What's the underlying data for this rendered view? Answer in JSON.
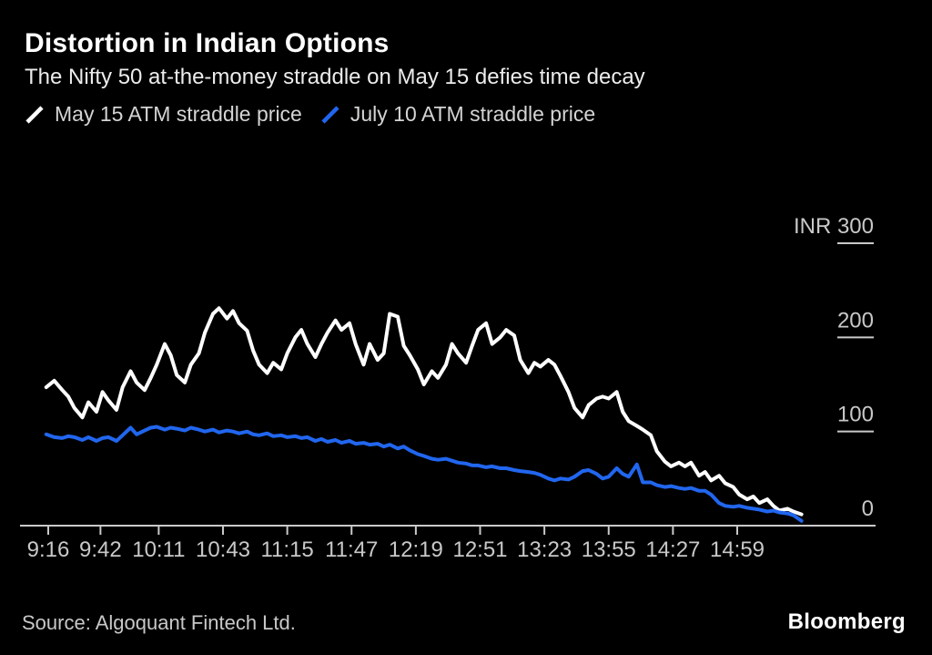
{
  "header": {
    "title": "Distortion in Indian Options",
    "subtitle": "The Nifty 50 at-the-money straddle on May 15 defies time decay"
  },
  "legend": [
    {
      "label": "May 15 ATM straddle price",
      "color": "#ffffff"
    },
    {
      "label": "July 10 ATM straddle price",
      "color": "#2166ee"
    }
  ],
  "footer": {
    "source": "Source: Algoquant Fintech Ltd.",
    "brand": "Bloomberg"
  },
  "colors": {
    "background": "#000000",
    "axis": "#c9c9c9",
    "tick_text": "#c8c8c8"
  },
  "chart_data": {
    "type": "line",
    "title": "Distortion in Indian Options",
    "subtitle": "The Nifty 50 at-the-money straddle on May 15 defies time decay",
    "unit": "INR",
    "grid": false,
    "legend_position": "top-left",
    "x_axis": {
      "kind": "time",
      "base_time": "9:15",
      "tick_minutes": [
        1,
        27,
        56,
        88,
        120,
        152,
        184,
        216,
        248,
        280,
        312,
        344
      ],
      "tick_labels": [
        "9:16",
        "9:42",
        "10:11",
        "10:43",
        "11:15",
        "11:47",
        "12:19",
        "12:51",
        "13:23",
        "13:55",
        "14:27",
        "14:59"
      ]
    },
    "y_axis": {
      "side": "right",
      "ylim": [
        0,
        300
      ],
      "ticks": [
        0,
        100,
        200,
        300
      ],
      "tick_labels": [
        "0",
        "100",
        "200",
        "INR 300"
      ]
    },
    "t_minutes": [
      0,
      4,
      8,
      11,
      14,
      18,
      21,
      25,
      28,
      31,
      35,
      38,
      42,
      45,
      49,
      52,
      55,
      59,
      62,
      65,
      69,
      72,
      76,
      79,
      83,
      86,
      90,
      93,
      96,
      100,
      103,
      106,
      110,
      113,
      117,
      120,
      124,
      127,
      130,
      134,
      137,
      140,
      144,
      147,
      151,
      154,
      158,
      161,
      165,
      168,
      171,
      175,
      178,
      181,
      185,
      188,
      192,
      195,
      199,
      202,
      205,
      209,
      212,
      215,
      219,
      222,
      226,
      229,
      233,
      236,
      240,
      243,
      246,
      250,
      253,
      256,
      260,
      263,
      267,
      270,
      274,
      277,
      280,
      284,
      287,
      290,
      294,
      297,
      301,
      304,
      308,
      311,
      315,
      318,
      321,
      325,
      328,
      331,
      335,
      338,
      342,
      345,
      349,
      352,
      355,
      359,
      362,
      365,
      369,
      372,
      376
    ],
    "series": [
      {
        "name": "May 15 ATM straddle price",
        "color": "#ffffff",
        "values": [
          147,
          154,
          144,
          137,
          125,
          115,
          131,
          121,
          142,
          133,
          123,
          147,
          164,
          152,
          144,
          157,
          171,
          193,
          181,
          160,
          152,
          171,
          183,
          205,
          225,
          231,
          220,
          228,
          215,
          207,
          186,
          171,
          162,
          173,
          166,
          183,
          200,
          208,
          193,
          179,
          193,
          205,
          218,
          208,
          215,
          193,
          171,
          193,
          176,
          183,
          225,
          222,
          191,
          181,
          166,
          150,
          164,
          157,
          171,
          193,
          183,
          173,
          191,
          208,
          215,
          193,
          200,
          208,
          202,
          176,
          162,
          173,
          169,
          176,
          171,
          159,
          142,
          125,
          115,
          128,
          135,
          137,
          135,
          142,
          121,
          111,
          106,
          102,
          96,
          79,
          68,
          63,
          67,
          63,
          67,
          53,
          57,
          48,
          53,
          45,
          41,
          33,
          28,
          31,
          24,
          28,
          21,
          16,
          18,
          15,
          12
        ]
      },
      {
        "name": "July 10 ATM straddle price",
        "color": "#2166ee",
        "values": [
          97,
          94,
          93,
          95,
          94,
          91,
          94,
          90,
          93,
          94,
          90,
          96,
          104,
          97,
          101,
          104,
          105,
          102,
          104,
          103,
          101,
          104,
          102,
          100,
          102,
          99,
          101,
          100,
          98,
          100,
          97,
          96,
          98,
          95,
          96,
          94,
          95,
          93,
          94,
          90,
          92,
          89,
          91,
          88,
          90,
          87,
          88,
          86,
          87,
          84,
          86,
          82,
          84,
          80,
          76,
          74,
          71,
          70,
          71,
          69,
          67,
          66,
          64,
          64,
          62,
          63,
          61,
          61,
          59,
          58,
          57,
          56,
          54,
          50,
          48,
          50,
          49,
          52,
          58,
          59,
          55,
          50,
          52,
          61,
          55,
          52,
          65,
          46,
          46,
          43,
          41,
          42,
          40,
          39,
          40,
          37,
          37,
          33,
          24,
          21,
          20,
          21,
          19,
          18,
          17,
          15,
          16,
          14,
          13,
          11,
          5
        ]
      }
    ]
  }
}
